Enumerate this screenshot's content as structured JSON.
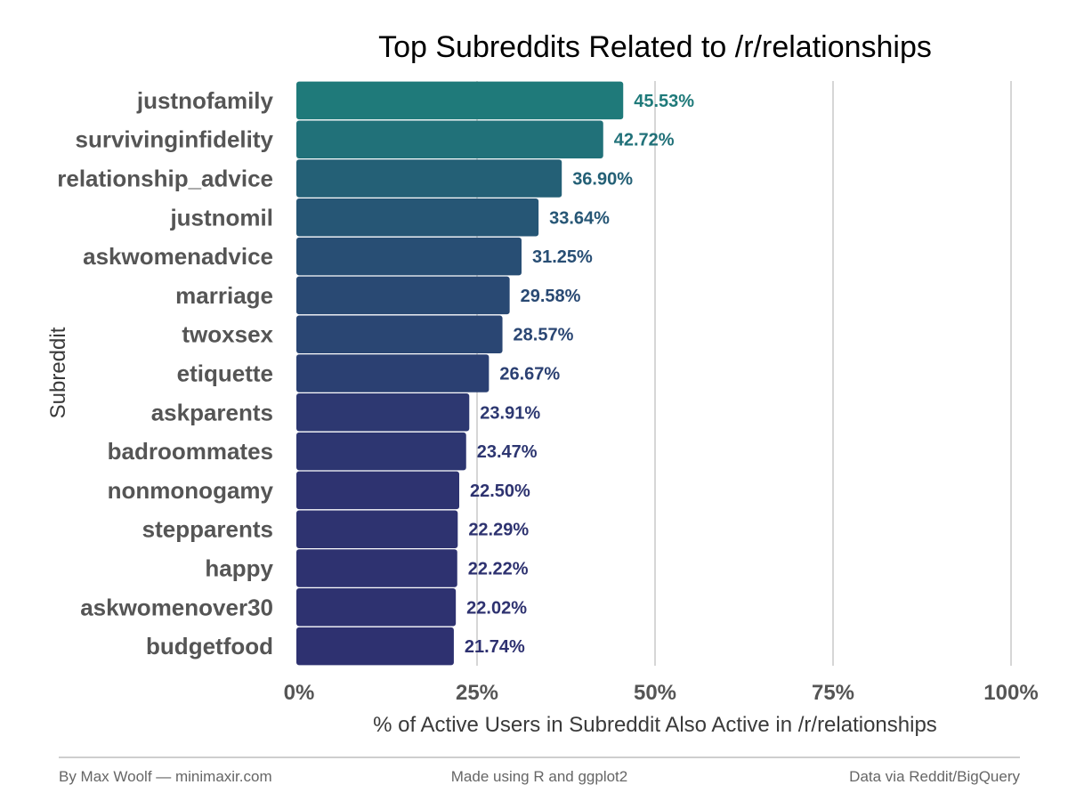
{
  "chart_data": {
    "type": "bar",
    "orientation": "horizontal",
    "title": "Top Subreddits Related to /r/relationships",
    "xlabel": "% of Active Users in Subreddit Also Active in /r/relationships",
    "ylabel": "Subreddit",
    "xlim": [
      0,
      100
    ],
    "x_ticks": [
      0,
      25,
      50,
      75,
      100
    ],
    "x_tick_labels": [
      "0%",
      "25%",
      "50%",
      "75%",
      "100%"
    ],
    "grid": "vertical major gridlines",
    "legend": "none",
    "categories": [
      "justnofamily",
      "survivinginfidelity",
      "relationship_advice",
      "justnomil",
      "askwomenadvice",
      "marriage",
      "twoxsex",
      "etiquette",
      "askparents",
      "badroommates",
      "nonmonogamy",
      "stepparents",
      "happy",
      "askwomenover30",
      "budgetfood"
    ],
    "values": [
      45.53,
      42.72,
      36.9,
      33.64,
      31.25,
      29.58,
      28.57,
      26.67,
      23.91,
      23.47,
      22.5,
      22.29,
      22.22,
      22.02,
      21.74
    ],
    "value_labels": [
      "45.53%",
      "42.72%",
      "36.90%",
      "33.64%",
      "31.25%",
      "29.58%",
      "28.57%",
      "26.67%",
      "23.91%",
      "23.47%",
      "22.50%",
      "22.29%",
      "22.22%",
      "22.02%",
      "21.74%"
    ],
    "color_scale": {
      "low": "#2e3170",
      "high": "#1f7a7a"
    }
  },
  "footer": {
    "left": "By Max Woolf — minimaxir.com",
    "center": "Made using R and ggplot2",
    "right": "Data via Reddit/BigQuery"
  }
}
